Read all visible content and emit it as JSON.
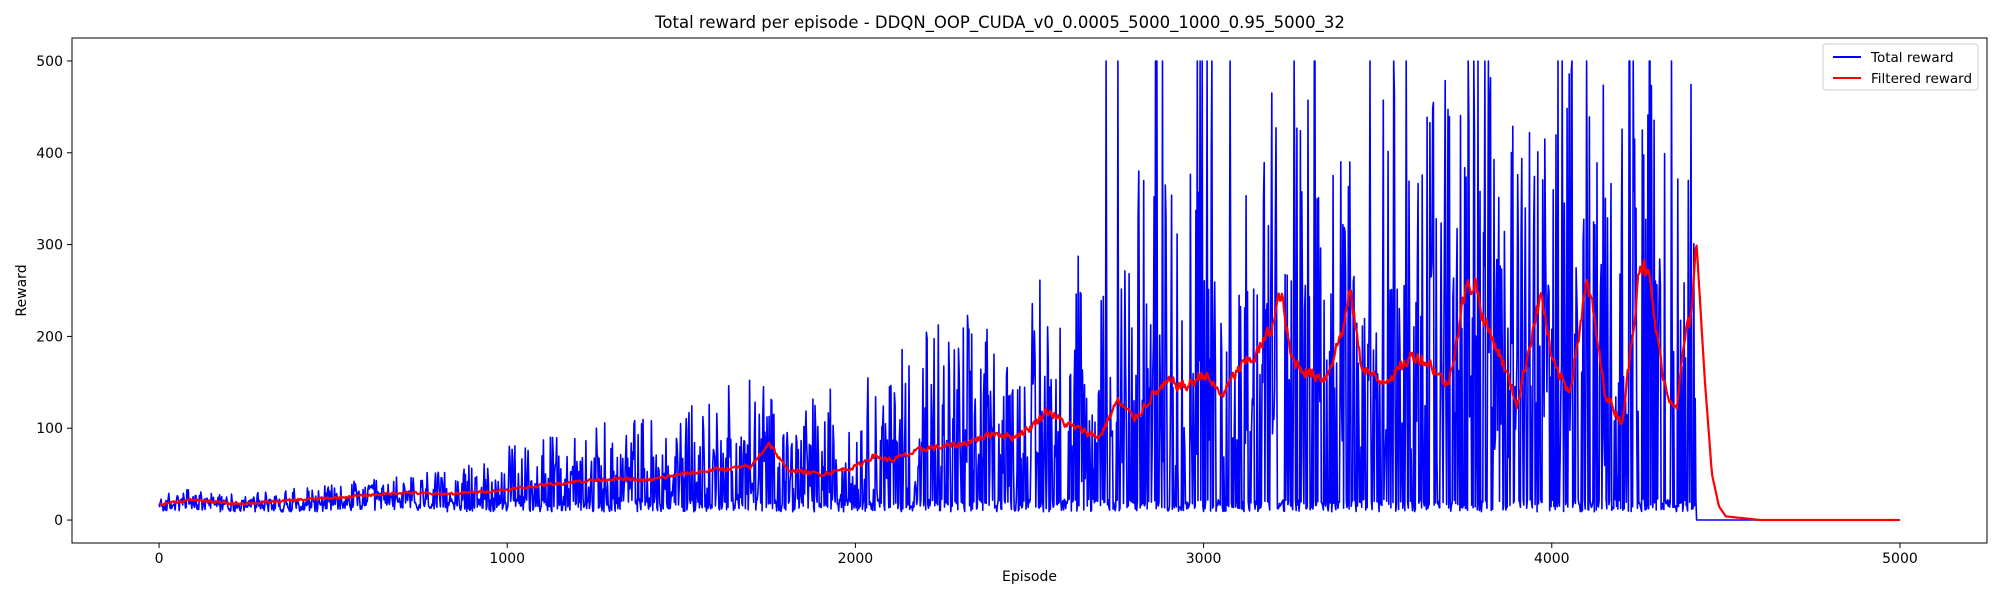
{
  "chart_data": {
    "type": "line",
    "title": "Total reward per episode - DDQN_OOP_CUDA_v0_0.0005_5000_1000_0.95_5000_32",
    "xlabel": "Episode",
    "ylabel": "Reward",
    "xlim": [
      -250,
      5250
    ],
    "ylim": [
      -25,
      525
    ],
    "xticks": [
      0,
      1000,
      2000,
      3000,
      4000,
      5000
    ],
    "yticks": [
      0,
      100,
      200,
      300,
      400,
      500
    ],
    "grid": false,
    "legend_position": "top-right",
    "series": [
      {
        "name": "Total reward",
        "color": "#0000ff",
        "style": "noisy, high-frequency per-episode reward; drops to 0 after episode ~4415",
        "points": [
          [
            0,
            22
          ],
          [
            100,
            30
          ],
          [
            200,
            25
          ],
          [
            300,
            30
          ],
          [
            400,
            35
          ],
          [
            500,
            40
          ],
          [
            600,
            45
          ],
          [
            700,
            50
          ],
          [
            800,
            55
          ],
          [
            900,
            60
          ],
          [
            1000,
            80
          ],
          [
            1100,
            90
          ],
          [
            1200,
            100
          ],
          [
            1300,
            110
          ],
          [
            1400,
            120
          ],
          [
            1500,
            140
          ],
          [
            1600,
            150
          ],
          [
            1700,
            160
          ],
          [
            1800,
            130
          ],
          [
            1900,
            150
          ],
          [
            2000,
            170
          ],
          [
            2100,
            190
          ],
          [
            2200,
            210
          ],
          [
            2300,
            220
          ],
          [
            2400,
            240
          ],
          [
            2500,
            260
          ],
          [
            2600,
            280
          ],
          [
            2700,
            300
          ],
          [
            2800,
            380
          ],
          [
            2900,
            420
          ],
          [
            3000,
            400
          ],
          [
            3100,
            450
          ],
          [
            3200,
            480
          ],
          [
            3300,
            470
          ],
          [
            3400,
            480
          ],
          [
            3500,
            470
          ],
          [
            3600,
            480
          ],
          [
            3700,
            480
          ],
          [
            3800,
            480
          ],
          [
            3900,
            490
          ],
          [
            4000,
            490
          ],
          [
            4100,
            490
          ],
          [
            4200,
            470
          ],
          [
            4300,
            480
          ],
          [
            4415,
            500
          ],
          [
            4416,
            0
          ],
          [
            5000,
            0
          ]
        ]
      },
      {
        "name": "Filtered reward",
        "color": "#ff0000",
        "points": [
          [
            0,
            17
          ],
          [
            50,
            20
          ],
          [
            100,
            22
          ],
          [
            200,
            18
          ],
          [
            300,
            19
          ],
          [
            400,
            22
          ],
          [
            500,
            24
          ],
          [
            600,
            27
          ],
          [
            700,
            30
          ],
          [
            800,
            28
          ],
          [
            900,
            30
          ],
          [
            1000,
            33
          ],
          [
            1100,
            38
          ],
          [
            1200,
            42
          ],
          [
            1300,
            45
          ],
          [
            1400,
            43
          ],
          [
            1500,
            50
          ],
          [
            1600,
            55
          ],
          [
            1700,
            58
          ],
          [
            1750,
            85
          ],
          [
            1800,
            55
          ],
          [
            1900,
            50
          ],
          [
            2000,
            58
          ],
          [
            2050,
            70
          ],
          [
            2100,
            65
          ],
          [
            2200,
            78
          ],
          [
            2300,
            82
          ],
          [
            2400,
            95
          ],
          [
            2450,
            90
          ],
          [
            2500,
            100
          ],
          [
            2550,
            120
          ],
          [
            2600,
            105
          ],
          [
            2700,
            90
          ],
          [
            2750,
            130
          ],
          [
            2800,
            110
          ],
          [
            2850,
            135
          ],
          [
            2900,
            150
          ],
          [
            2950,
            145
          ],
          [
            3000,
            160
          ],
          [
            3050,
            135
          ],
          [
            3100,
            165
          ],
          [
            3150,
            180
          ],
          [
            3200,
            215
          ],
          [
            3220,
            250
          ],
          [
            3250,
            175
          ],
          [
            3300,
            160
          ],
          [
            3350,
            155
          ],
          [
            3400,
            210
          ],
          [
            3420,
            250
          ],
          [
            3450,
            170
          ],
          [
            3500,
            150
          ],
          [
            3550,
            160
          ],
          [
            3600,
            180
          ],
          [
            3650,
            170
          ],
          [
            3700,
            145
          ],
          [
            3750,
            250
          ],
          [
            3780,
            260
          ],
          [
            3800,
            220
          ],
          [
            3850,
            180
          ],
          [
            3900,
            125
          ],
          [
            3950,
            220
          ],
          [
            3970,
            245
          ],
          [
            4000,
            170
          ],
          [
            4050,
            140
          ],
          [
            4100,
            260
          ],
          [
            4120,
            220
          ],
          [
            4150,
            140
          ],
          [
            4200,
            105
          ],
          [
            4230,
            200
          ],
          [
            4250,
            285
          ],
          [
            4280,
            260
          ],
          [
            4300,
            200
          ],
          [
            4330,
            135
          ],
          [
            4360,
            125
          ],
          [
            4380,
            200
          ],
          [
            4400,
            220
          ],
          [
            4415,
            305
          ],
          [
            4440,
            150
          ],
          [
            4460,
            50
          ],
          [
            4480,
            15
          ],
          [
            4500,
            4
          ],
          [
            4600,
            0
          ],
          [
            5000,
            0
          ]
        ]
      }
    ]
  }
}
